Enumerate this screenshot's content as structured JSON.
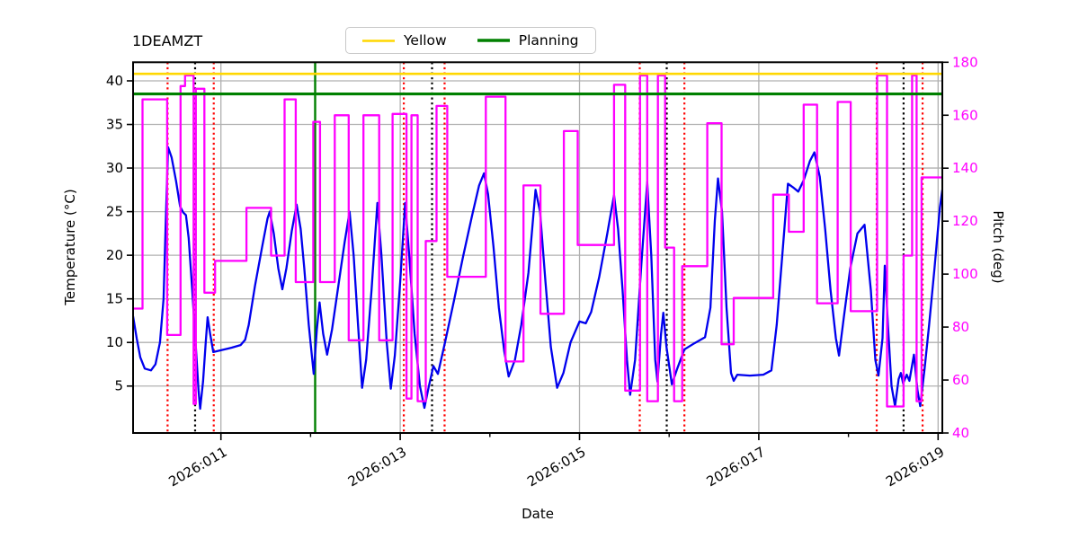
{
  "title": "1DEAMZT",
  "legend": [
    {
      "label": "Yellow",
      "color": "#FFD700"
    },
    {
      "label": "Planning",
      "color": "#008000"
    }
  ],
  "colors": {
    "temperature_line": "#0000EE",
    "pitch_line": "#FF00FF",
    "yellow_limit": "#FFD700",
    "planning_limit": "#008000",
    "red_event": "#FF0000",
    "black_event": "#000000",
    "green_event": "#008000",
    "grid": "#b0b0b0",
    "right_axis_text": "#FF00FF",
    "left_axis_text": "#000000"
  },
  "chart_data": {
    "type": "line",
    "title": "1DEAMZT",
    "xlabel": "Date",
    "ylabel_left": "Temperature (°C)",
    "ylabel_right": "Pitch (deg)",
    "grid": true,
    "legend_position": "top-center",
    "x_axis": {
      "tick_labels": [
        "2026:011",
        "2026:013",
        "2026:015",
        "2026:017",
        "2026:019"
      ],
      "tick_days": [
        11,
        13,
        15,
        17,
        19
      ],
      "minor_tick_days": [
        12,
        14,
        16,
        18
      ],
      "domain_days": [
        10.02,
        19.05
      ]
    },
    "y_left": {
      "ticks": [
        5,
        10,
        15,
        20,
        25,
        30,
        35,
        40
      ],
      "range": [
        -0.4,
        42.1
      ]
    },
    "y_right": {
      "ticks": [
        40,
        60,
        80,
        100,
        120,
        140,
        160,
        180
      ],
      "range": [
        40,
        180
      ]
    },
    "limit_lines": [
      {
        "name": "yellow",
        "label": "Yellow",
        "value": 40.8,
        "color": "#FFD700",
        "width": 2.6
      },
      {
        "name": "planning",
        "label": "Planning",
        "value": 38.5,
        "color": "#008000",
        "width": 3.2
      }
    ],
    "event_lines": {
      "red_dotted_days": [
        10.405,
        10.92,
        13.04,
        13.495,
        15.672,
        16.17,
        18.315,
        18.827
      ],
      "black_dotted_days": [
        10.712,
        13.355,
        15.973,
        18.615
      ],
      "green_solid_days": [
        12.051
      ]
    },
    "series": [
      {
        "name": "1DEAMZT temperature",
        "axis": "left",
        "color": "#0000EE",
        "style": "line",
        "width": 2.3,
        "points": [
          [
            10.02,
            13.0
          ],
          [
            10.06,
            10.5
          ],
          [
            10.1,
            8.3
          ],
          [
            10.15,
            7.0
          ],
          [
            10.22,
            6.8
          ],
          [
            10.27,
            7.5
          ],
          [
            10.32,
            10
          ],
          [
            10.36,
            15
          ],
          [
            10.385,
            24
          ],
          [
            10.41,
            32.4
          ],
          [
            10.45,
            31.2
          ],
          [
            10.5,
            28.5
          ],
          [
            10.545,
            25.6
          ],
          [
            10.58,
            24.9
          ],
          [
            10.61,
            24.6
          ],
          [
            10.64,
            22
          ],
          [
            10.68,
            16
          ],
          [
            10.72,
            9.5
          ],
          [
            10.75,
            4.5
          ],
          [
            10.768,
            2.4
          ],
          [
            10.8,
            5.5
          ],
          [
            10.83,
            10
          ],
          [
            10.852,
            12.9
          ],
          [
            10.88,
            11
          ],
          [
            10.915,
            8.9
          ],
          [
            11.0,
            9.1
          ],
          [
            11.12,
            9.4
          ],
          [
            11.22,
            9.7
          ],
          [
            11.27,
            10.3
          ],
          [
            11.31,
            12
          ],
          [
            11.38,
            16.5
          ],
          [
            11.46,
            21
          ],
          [
            11.52,
            24.2
          ],
          [
            11.545,
            25.0
          ],
          [
            11.59,
            22.5
          ],
          [
            11.64,
            18.5
          ],
          [
            11.685,
            16.1
          ],
          [
            11.73,
            18.5
          ],
          [
            11.79,
            22.8
          ],
          [
            11.845,
            25.8
          ],
          [
            11.89,
            23
          ],
          [
            11.93,
            18.5
          ],
          [
            11.98,
            12
          ],
          [
            12.035,
            6.4
          ],
          [
            12.07,
            11.5
          ],
          [
            12.1,
            14.6
          ],
          [
            12.14,
            11
          ],
          [
            12.185,
            8.6
          ],
          [
            12.24,
            11.5
          ],
          [
            12.31,
            16.5
          ],
          [
            12.38,
            21.5
          ],
          [
            12.435,
            25.0
          ],
          [
            12.48,
            20
          ],
          [
            12.53,
            12
          ],
          [
            12.575,
            4.8
          ],
          [
            12.62,
            8
          ],
          [
            12.68,
            16
          ],
          [
            12.745,
            26.0
          ],
          [
            12.79,
            20
          ],
          [
            12.85,
            10
          ],
          [
            12.895,
            4.7
          ],
          [
            12.94,
            8.5
          ],
          [
            13.0,
            17
          ],
          [
            13.055,
            26.0
          ],
          [
            13.1,
            20
          ],
          [
            13.16,
            11
          ],
          [
            13.22,
            5
          ],
          [
            13.27,
            2.5
          ],
          [
            13.32,
            5
          ],
          [
            13.37,
            7.3
          ],
          [
            13.42,
            6.4
          ],
          [
            13.5,
            10
          ],
          [
            13.6,
            14.8
          ],
          [
            13.7,
            19.8
          ],
          [
            13.8,
            24.5
          ],
          [
            13.88,
            28
          ],
          [
            13.935,
            29.4
          ],
          [
            13.98,
            27
          ],
          [
            14.04,
            21
          ],
          [
            14.1,
            14
          ],
          [
            14.16,
            9
          ],
          [
            14.21,
            6.1
          ],
          [
            14.28,
            8
          ],
          [
            14.35,
            12
          ],
          [
            14.43,
            18
          ],
          [
            14.51,
            27.5
          ],
          [
            14.56,
            25
          ],
          [
            14.62,
            17
          ],
          [
            14.68,
            9.5
          ],
          [
            14.75,
            4.8
          ],
          [
            14.82,
            6.5
          ],
          [
            14.9,
            10
          ],
          [
            15.0,
            12.4
          ],
          [
            15.07,
            12.2
          ],
          [
            15.13,
            13.5
          ],
          [
            15.22,
            17.5
          ],
          [
            15.31,
            22.5
          ],
          [
            15.385,
            26.9
          ],
          [
            15.43,
            23
          ],
          [
            15.48,
            16
          ],
          [
            15.53,
            8
          ],
          [
            15.565,
            4.0
          ],
          [
            15.62,
            8
          ],
          [
            15.69,
            19
          ],
          [
            15.755,
            28.4
          ],
          [
            15.8,
            20
          ],
          [
            15.845,
            8
          ],
          [
            15.87,
            5.5
          ],
          [
            15.91,
            11
          ],
          [
            15.935,
            13.4
          ],
          [
            15.97,
            9.5
          ],
          [
            16.03,
            5.2
          ],
          [
            16.09,
            7
          ],
          [
            16.17,
            9.2
          ],
          [
            16.28,
            9.9
          ],
          [
            16.4,
            10.6
          ],
          [
            16.46,
            14
          ],
          [
            16.51,
            24
          ],
          [
            16.545,
            28.8
          ],
          [
            16.59,
            25
          ],
          [
            16.64,
            14
          ],
          [
            16.69,
            6.5
          ],
          [
            16.72,
            5.6
          ],
          [
            16.76,
            6.3
          ],
          [
            16.9,
            6.2
          ],
          [
            17.05,
            6.3
          ],
          [
            17.14,
            6.8
          ],
          [
            17.2,
            12
          ],
          [
            17.27,
            21
          ],
          [
            17.325,
            28.2
          ],
          [
            17.38,
            27.8
          ],
          [
            17.44,
            27.3
          ],
          [
            17.5,
            28.6
          ],
          [
            17.57,
            30.8
          ],
          [
            17.62,
            31.8
          ],
          [
            17.68,
            29
          ],
          [
            17.74,
            23
          ],
          [
            17.8,
            16
          ],
          [
            17.86,
            10.5
          ],
          [
            17.895,
            8.5
          ],
          [
            17.95,
            13
          ],
          [
            18.02,
            18.5
          ],
          [
            18.1,
            22.5
          ],
          [
            18.18,
            23.5
          ],
          [
            18.25,
            16
          ],
          [
            18.3,
            8
          ],
          [
            18.335,
            6.2
          ],
          [
            18.38,
            10.5
          ],
          [
            18.405,
            18.8
          ],
          [
            18.44,
            12
          ],
          [
            18.48,
            5
          ],
          [
            18.52,
            2.7
          ],
          [
            18.56,
            5.8
          ],
          [
            18.585,
            6.5
          ],
          [
            18.61,
            5.3
          ],
          [
            18.65,
            6.3
          ],
          [
            18.68,
            5.6
          ],
          [
            18.73,
            8.6
          ],
          [
            18.77,
            4.5
          ],
          [
            18.8,
            2.7
          ],
          [
            18.85,
            7
          ],
          [
            18.9,
            12
          ],
          [
            18.96,
            18.5
          ],
          [
            19.02,
            25.5
          ],
          [
            19.047,
            27.5
          ]
        ]
      },
      {
        "name": "Pitch",
        "axis": "right",
        "color": "#FF00FF",
        "style": "step",
        "width": 2.3,
        "points": [
          [
            10.02,
            87
          ],
          [
            10.125,
            166
          ],
          [
            10.4,
            77
          ],
          [
            10.55,
            171
          ],
          [
            10.6,
            175
          ],
          [
            10.695,
            51
          ],
          [
            10.72,
            170
          ],
          [
            10.815,
            93
          ],
          [
            10.935,
            105
          ],
          [
            11.285,
            125
          ],
          [
            11.56,
            107
          ],
          [
            11.71,
            166
          ],
          [
            11.835,
            97
          ],
          [
            12.03,
            157.5
          ],
          [
            12.105,
            97
          ],
          [
            12.27,
            160
          ],
          [
            12.425,
            75
          ],
          [
            12.59,
            160
          ],
          [
            12.765,
            75
          ],
          [
            12.915,
            160.5
          ],
          [
            13.07,
            53
          ],
          [
            13.125,
            160
          ],
          [
            13.195,
            52
          ],
          [
            13.285,
            112.5
          ],
          [
            13.405,
            163.5
          ],
          [
            13.525,
            99
          ],
          [
            13.955,
            167
          ],
          [
            14.175,
            67
          ],
          [
            14.375,
            133.5
          ],
          [
            14.565,
            85
          ],
          [
            14.825,
            154
          ],
          [
            14.98,
            111
          ],
          [
            15.385,
            171.5
          ],
          [
            15.51,
            56
          ],
          [
            15.675,
            175
          ],
          [
            15.755,
            52
          ],
          [
            15.875,
            175
          ],
          [
            15.955,
            110
          ],
          [
            16.055,
            52
          ],
          [
            16.145,
            103
          ],
          [
            16.425,
            157
          ],
          [
            16.585,
            73.5
          ],
          [
            16.72,
            91
          ],
          [
            17.16,
            130
          ],
          [
            17.335,
            116
          ],
          [
            17.5,
            164
          ],
          [
            17.65,
            89
          ],
          [
            17.88,
            165
          ],
          [
            18.025,
            86
          ],
          [
            18.32,
            175
          ],
          [
            18.43,
            50
          ],
          [
            18.615,
            107
          ],
          [
            18.71,
            175
          ],
          [
            18.76,
            52
          ],
          [
            18.815,
            136.5
          ],
          [
            19.047,
            136.5
          ]
        ]
      }
    ]
  }
}
